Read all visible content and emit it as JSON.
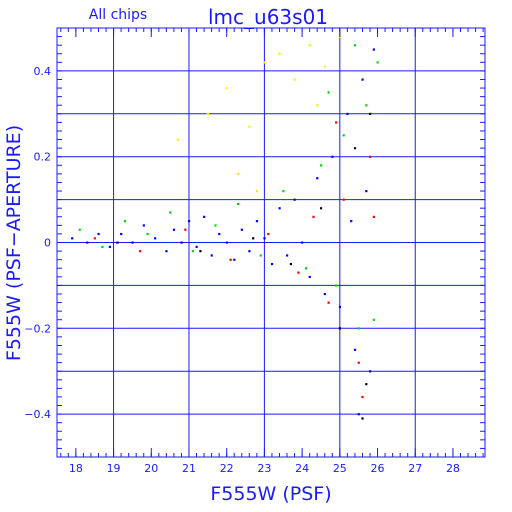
{
  "chart_data": {
    "type": "scatter",
    "title": "lmc_u63s01",
    "subtitle": "All chips",
    "xlabel": "F555W (PSF)",
    "ylabel": "F555W (PSF−APERTURE)",
    "xlim": [
      17.5,
      28.85
    ],
    "ylim": [
      -0.5,
      0.5
    ],
    "xticks": [
      18,
      19,
      20,
      21,
      22,
      23,
      24,
      25,
      26,
      27,
      28
    ],
    "xtick_labels": [
      "18",
      "19",
      "20",
      "21",
      "22",
      "23",
      "24",
      "25",
      "26",
      "27",
      "28"
    ],
    "yticks": [
      -0.4,
      -0.2,
      0,
      0.2,
      0.4
    ],
    "ytick_labels": [
      "−0.4",
      "−0.2",
      "0",
      "0.2",
      "0.4"
    ],
    "grid": true,
    "series": [
      {
        "color": "#0000ff",
        "points": [
          [
            17.9,
            0.01
          ],
          [
            18.3,
            0.0
          ],
          [
            18.6,
            0.02
          ],
          [
            18.9,
            -0.01
          ],
          [
            19.2,
            0.02
          ],
          [
            19.5,
            0.0
          ],
          [
            19.8,
            0.04
          ],
          [
            20.1,
            0.01
          ],
          [
            20.4,
            -0.02
          ],
          [
            20.6,
            0.03
          ],
          [
            20.8,
            0.0
          ],
          [
            21.0,
            0.05
          ],
          [
            21.2,
            -0.01
          ],
          [
            21.4,
            0.06
          ],
          [
            21.6,
            -0.03
          ],
          [
            21.8,
            0.02
          ],
          [
            22.0,
            0.0
          ],
          [
            22.2,
            -0.04
          ],
          [
            22.4,
            0.03
          ],
          [
            22.6,
            -0.02
          ],
          [
            22.8,
            0.05
          ],
          [
            23.0,
            0.01
          ],
          [
            23.2,
            -0.05
          ],
          [
            23.4,
            0.08
          ],
          [
            23.6,
            -0.03
          ],
          [
            23.8,
            0.1
          ],
          [
            24.0,
            0.0
          ],
          [
            24.2,
            -0.08
          ],
          [
            24.4,
            0.15
          ],
          [
            24.6,
            -0.12
          ],
          [
            24.8,
            0.2
          ],
          [
            25.0,
            -0.15
          ],
          [
            25.2,
            0.3
          ],
          [
            25.4,
            -0.25
          ],
          [
            25.6,
            0.38
          ],
          [
            25.8,
            -0.3
          ],
          [
            25.9,
            0.45
          ],
          [
            25.5,
            -0.4
          ],
          [
            25.7,
            0.12
          ],
          [
            25.3,
            0.05
          ]
        ]
      },
      {
        "color": "#00d800",
        "points": [
          [
            18.1,
            0.03
          ],
          [
            18.7,
            -0.01
          ],
          [
            19.3,
            0.05
          ],
          [
            19.9,
            0.02
          ],
          [
            20.5,
            0.07
          ],
          [
            21.1,
            -0.02
          ],
          [
            21.7,
            0.04
          ],
          [
            22.3,
            0.09
          ],
          [
            22.9,
            -0.03
          ],
          [
            23.5,
            0.12
          ],
          [
            24.1,
            -0.06
          ],
          [
            24.5,
            0.18
          ],
          [
            24.9,
            -0.1
          ],
          [
            25.1,
            0.25
          ],
          [
            25.5,
            -0.2
          ],
          [
            25.7,
            0.32
          ],
          [
            25.9,
            -0.18
          ],
          [
            26.0,
            0.42
          ],
          [
            25.4,
            0.46
          ],
          [
            24.7,
            0.35
          ]
        ]
      },
      {
        "color": "#ff0000",
        "points": [
          [
            18.5,
            0.01
          ],
          [
            19.7,
            -0.02
          ],
          [
            20.9,
            0.03
          ],
          [
            22.1,
            -0.04
          ],
          [
            23.1,
            0.02
          ],
          [
            23.9,
            -0.07
          ],
          [
            24.3,
            0.06
          ],
          [
            24.7,
            -0.14
          ],
          [
            25.1,
            0.1
          ],
          [
            25.5,
            -0.28
          ],
          [
            25.8,
            0.2
          ],
          [
            25.6,
            -0.36
          ],
          [
            25.9,
            0.06
          ],
          [
            24.9,
            0.28
          ]
        ]
      },
      {
        "color": "#000000",
        "points": [
          [
            19.1,
            0.0
          ],
          [
            21.3,
            -0.02
          ],
          [
            22.7,
            0.01
          ],
          [
            23.7,
            -0.05
          ],
          [
            24.5,
            0.08
          ],
          [
            25.0,
            -0.2
          ],
          [
            25.4,
            0.22
          ],
          [
            25.7,
            -0.33
          ],
          [
            25.8,
            0.3
          ],
          [
            25.6,
            -0.41
          ]
        ]
      },
      {
        "color": "#ffee00",
        "points": [
          [
            20.7,
            0.24
          ],
          [
            21.5,
            0.3
          ],
          [
            22.0,
            0.36
          ],
          [
            22.3,
            0.16
          ],
          [
            22.6,
            0.27
          ],
          [
            23.0,
            0.42
          ],
          [
            23.4,
            0.44
          ],
          [
            23.8,
            0.38
          ],
          [
            24.2,
            0.46
          ],
          [
            24.6,
            0.41
          ],
          [
            25.0,
            0.48
          ],
          [
            22.8,
            0.12
          ],
          [
            24.4,
            0.32
          ]
        ]
      }
    ]
  }
}
